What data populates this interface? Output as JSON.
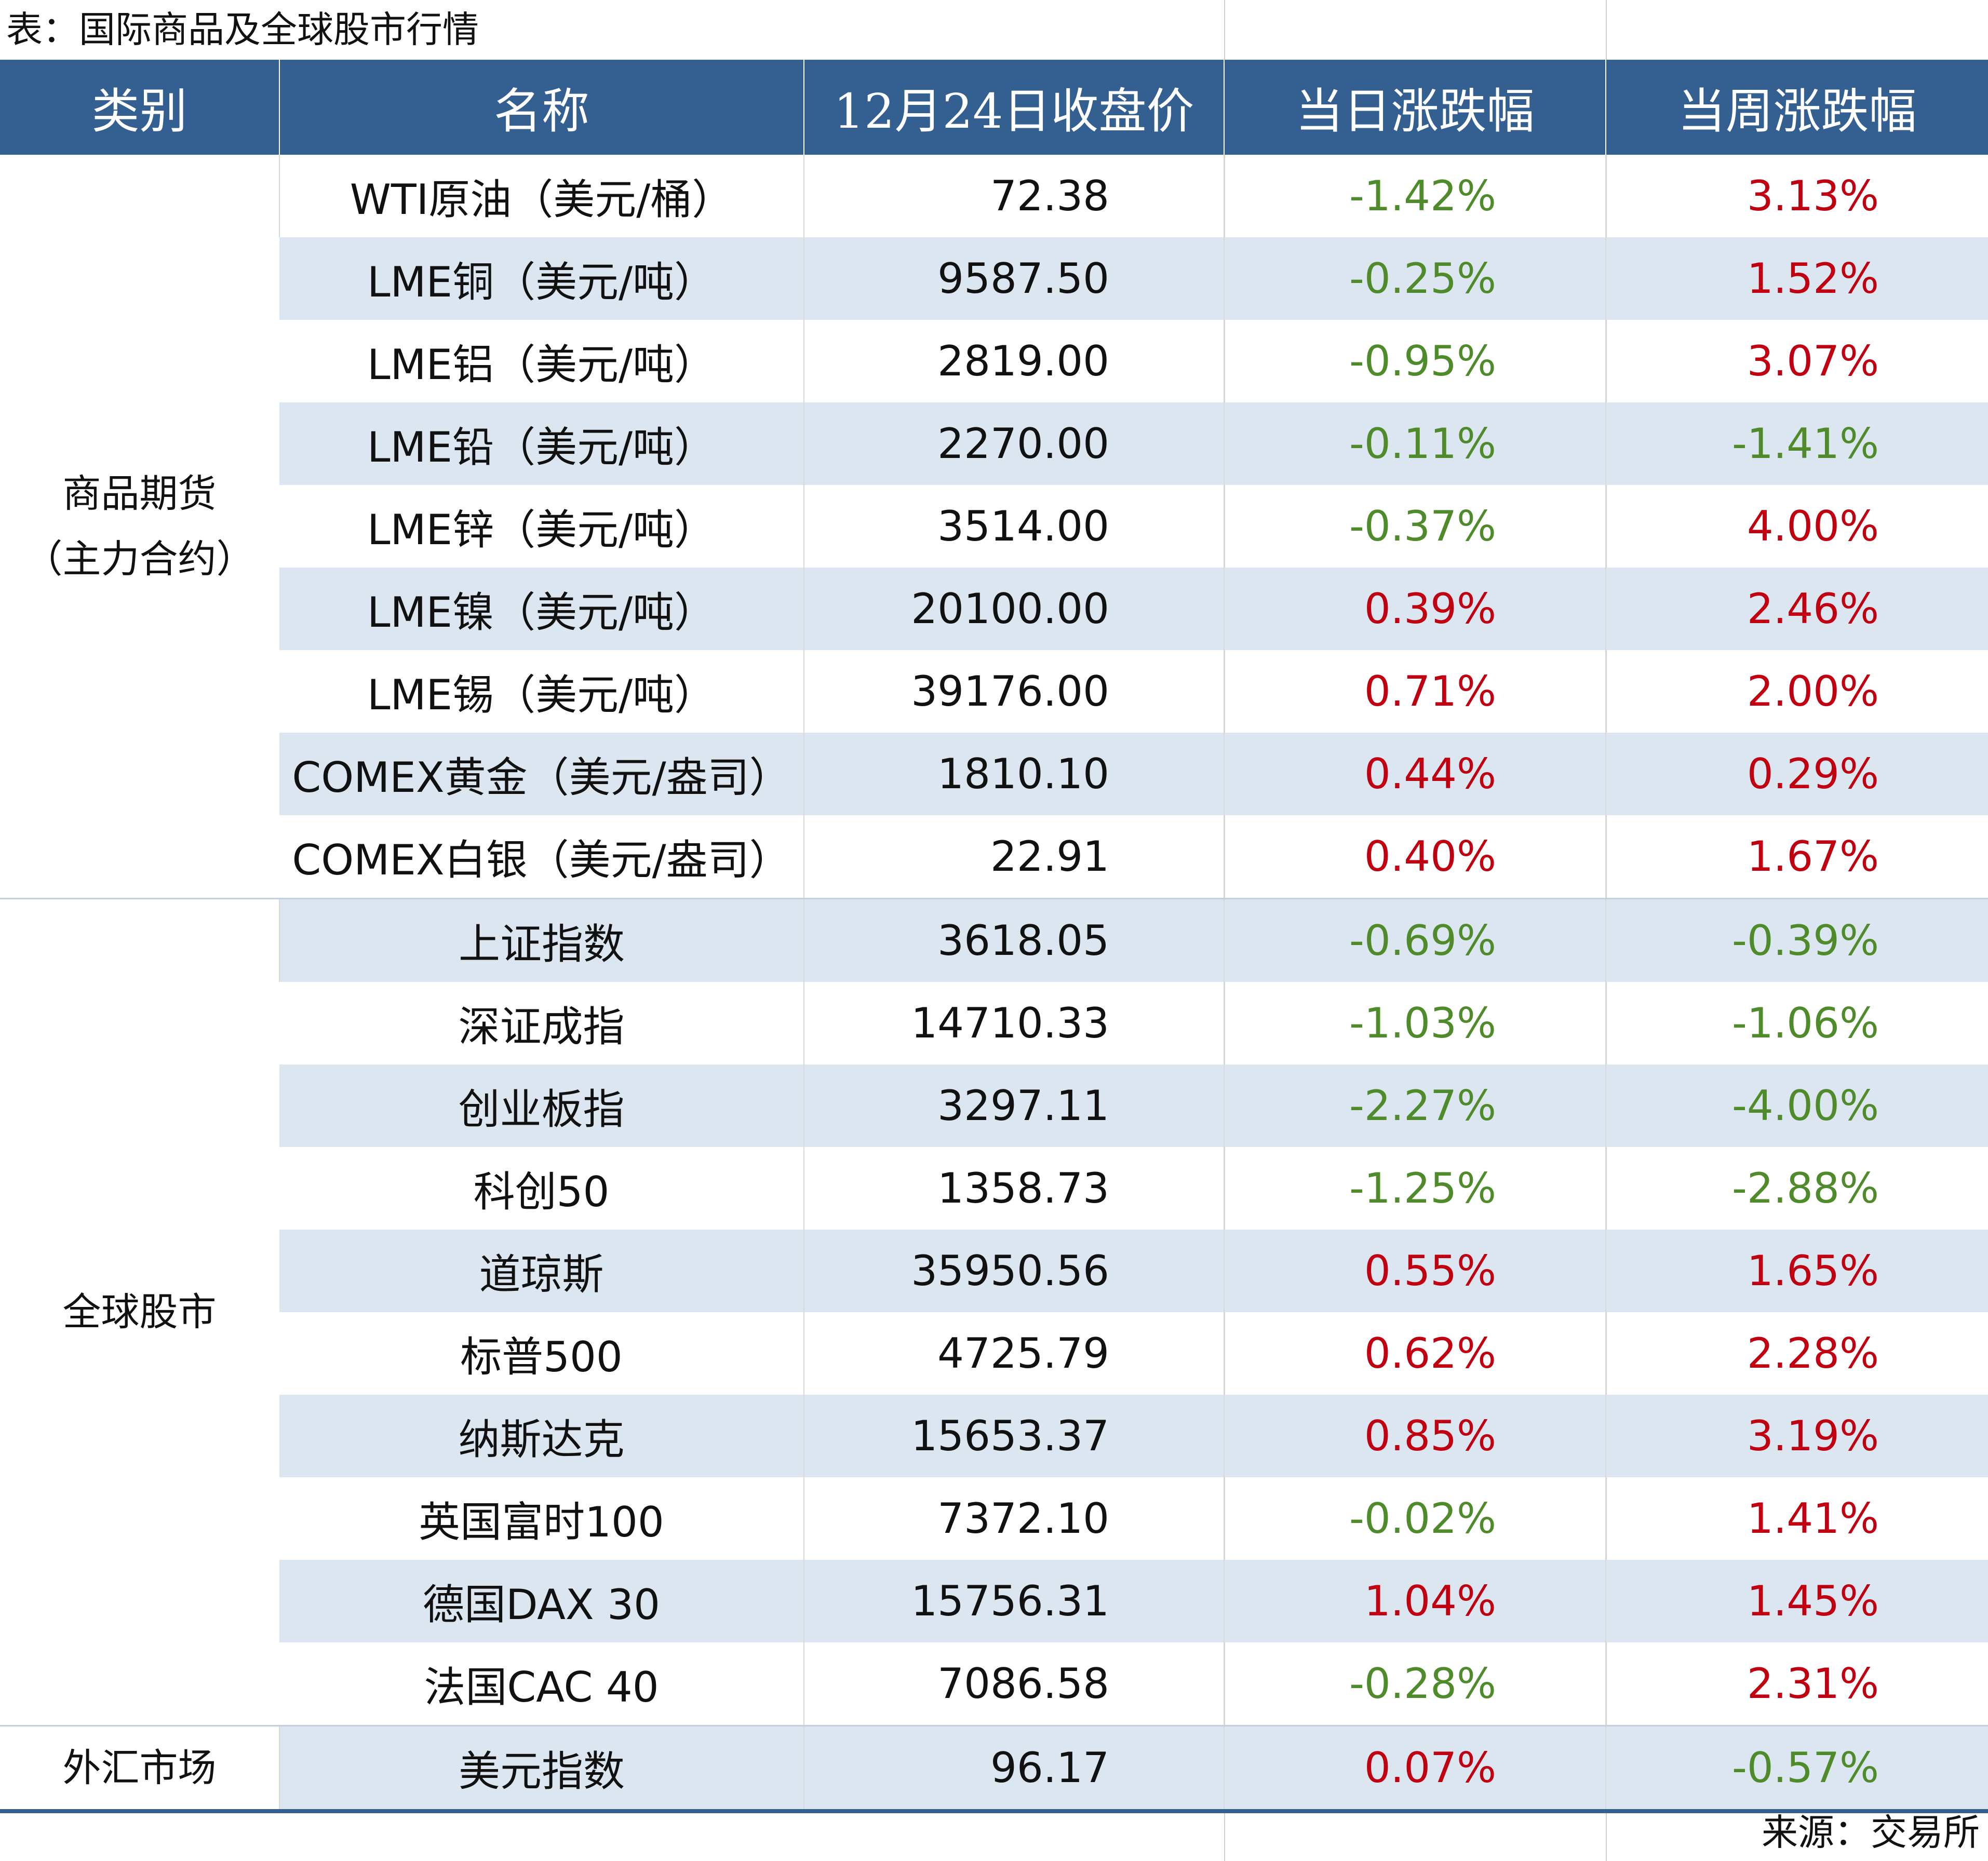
{
  "caption": "表：国际商品及全球股市行情",
  "source": "来源：交易所",
  "colors": {
    "header_bg": "#335f91",
    "stripe": "#dce6f0",
    "up": "#c00010",
    "down": "#4f8a2b"
  },
  "table": {
    "headers": [
      "类别",
      "名称",
      "12月24日收盘价",
      "当日涨跌幅",
      "当周涨跌幅"
    ],
    "groups": [
      {
        "category_lines": [
          "商品期货",
          "（主力合约）"
        ],
        "rows": [
          {
            "name": "WTI原油（美元/桶）",
            "price": "72.38",
            "day": "-1.42%",
            "day_dir": "down",
            "week": "3.13%",
            "week_dir": "up"
          },
          {
            "name": "LME铜（美元/吨）",
            "price": "9587.50",
            "day": "-0.25%",
            "day_dir": "down",
            "week": "1.52%",
            "week_dir": "up"
          },
          {
            "name": "LME铝（美元/吨）",
            "price": "2819.00",
            "day": "-0.95%",
            "day_dir": "down",
            "week": "3.07%",
            "week_dir": "up"
          },
          {
            "name": "LME铅（美元/吨）",
            "price": "2270.00",
            "day": "-0.11%",
            "day_dir": "down",
            "week": "-1.41%",
            "week_dir": "down"
          },
          {
            "name": "LME锌（美元/吨）",
            "price": "3514.00",
            "day": "-0.37%",
            "day_dir": "down",
            "week": "4.00%",
            "week_dir": "up"
          },
          {
            "name": "LME镍（美元/吨）",
            "price": "20100.00",
            "day": "0.39%",
            "day_dir": "up",
            "week": "2.46%",
            "week_dir": "up"
          },
          {
            "name": "LME锡（美元/吨）",
            "price": "39176.00",
            "day": "0.71%",
            "day_dir": "up",
            "week": "2.00%",
            "week_dir": "up"
          },
          {
            "name": "COMEX黄金（美元/盎司）",
            "price": "1810.10",
            "day": "0.44%",
            "day_dir": "up",
            "week": "0.29%",
            "week_dir": "up"
          },
          {
            "name": "COMEX白银（美元/盎司）",
            "price": "22.91",
            "day": "0.40%",
            "day_dir": "up",
            "week": "1.67%",
            "week_dir": "up"
          }
        ]
      },
      {
        "category_lines": [
          "全球股市"
        ],
        "rows": [
          {
            "name": "上证指数",
            "price": "3618.05",
            "day": "-0.69%",
            "day_dir": "down",
            "week": "-0.39%",
            "week_dir": "down"
          },
          {
            "name": "深证成指",
            "price": "14710.33",
            "day": "-1.03%",
            "day_dir": "down",
            "week": "-1.06%",
            "week_dir": "down"
          },
          {
            "name": "创业板指",
            "price": "3297.11",
            "day": "-2.27%",
            "day_dir": "down",
            "week": "-4.00%",
            "week_dir": "down"
          },
          {
            "name": "科创50",
            "price": "1358.73",
            "day": "-1.25%",
            "day_dir": "down",
            "week": "-2.88%",
            "week_dir": "down"
          },
          {
            "name": "道琼斯",
            "price": "35950.56",
            "day": "0.55%",
            "day_dir": "up",
            "week": "1.65%",
            "week_dir": "up"
          },
          {
            "name": "标普500",
            "price": "4725.79",
            "day": "0.62%",
            "day_dir": "up",
            "week": "2.28%",
            "week_dir": "up"
          },
          {
            "name": "纳斯达克",
            "price": "15653.37",
            "day": "0.85%",
            "day_dir": "up",
            "week": "3.19%",
            "week_dir": "up"
          },
          {
            "name": "英国富时100",
            "price": "7372.10",
            "day": "-0.02%",
            "day_dir": "down",
            "week": "1.41%",
            "week_dir": "up"
          },
          {
            "name": "德国DAX 30",
            "price": "15756.31",
            "day": "1.04%",
            "day_dir": "up",
            "week": "1.45%",
            "week_dir": "up"
          },
          {
            "name": "法国CAC 40",
            "price": "7086.58",
            "day": "-0.28%",
            "day_dir": "down",
            "week": "2.31%",
            "week_dir": "up"
          }
        ]
      },
      {
        "category_lines": [
          "外汇市场"
        ],
        "rows": [
          {
            "name": "美元指数",
            "price": "96.17",
            "day": "0.07%",
            "day_dir": "up",
            "week": "-0.57%",
            "week_dir": "down"
          }
        ]
      }
    ]
  }
}
